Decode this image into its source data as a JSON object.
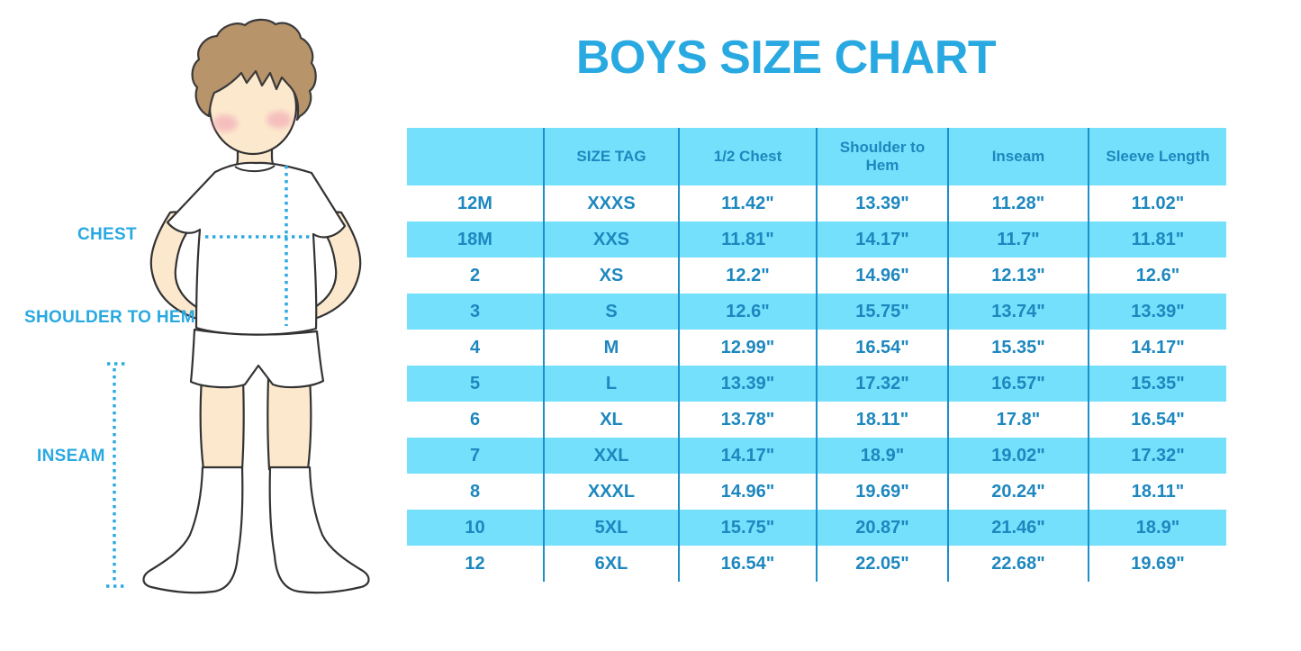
{
  "title": "BOYS SIZE CHART",
  "figure": {
    "chest_label": "CHEST",
    "shoulder_to_hem_label": "SHOULDER TO HEM",
    "inseam_label": "INSEAM"
  },
  "colors": {
    "accent_azure": "#29A9E1",
    "table_text_blue": "#1D87BF",
    "stripe_light_blue": "#74E0FB",
    "column_divider_blue": "#1D8FCB",
    "hair_brown": "#B8946B",
    "skin_peach": "#FCE9CD",
    "blush_pink": "#F09CB1"
  },
  "chart_data": {
    "type": "table",
    "title": "BOYS SIZE CHART",
    "columns": [
      "",
      "SIZE TAG",
      "1/2 Chest",
      "Shoulder to Hem",
      "Inseam",
      "Sleeve Length"
    ],
    "rows": [
      [
        "12M",
        "XXXS",
        "11.42\"",
        "13.39\"",
        "11.28\"",
        "11.02\""
      ],
      [
        "18M",
        "XXS",
        "11.81\"",
        "14.17\"",
        "11.7\"",
        "11.81\""
      ],
      [
        "2",
        "XS",
        "12.2\"",
        "14.96\"",
        "12.13\"",
        "12.6\""
      ],
      [
        "3",
        "S",
        "12.6\"",
        "15.75\"",
        "13.74\"",
        "13.39\""
      ],
      [
        "4",
        "M",
        "12.99\"",
        "16.54\"",
        "15.35\"",
        "14.17\""
      ],
      [
        "5",
        "L",
        "13.39\"",
        "17.32\"",
        "16.57\"",
        "15.35\""
      ],
      [
        "6",
        "XL",
        "13.78\"",
        "18.11\"",
        "17.8\"",
        "16.54\""
      ],
      [
        "7",
        "XXL",
        "14.17\"",
        "18.9\"",
        "19.02\"",
        "17.32\""
      ],
      [
        "8",
        "XXXL",
        "14.96\"",
        "19.69\"",
        "20.24\"",
        "18.11\""
      ],
      [
        "10",
        "5XL",
        "15.75\"",
        "20.87\"",
        "21.46\"",
        "18.9\""
      ],
      [
        "12",
        "6XL",
        "16.54\"",
        "22.05\"",
        "22.68\"",
        "19.69\""
      ]
    ],
    "layout": {
      "header_background": "#74E0FB",
      "row_stripe_pattern": [
        "white",
        "#74E0FB"
      ],
      "grid": "vertical-dividers-only"
    }
  }
}
